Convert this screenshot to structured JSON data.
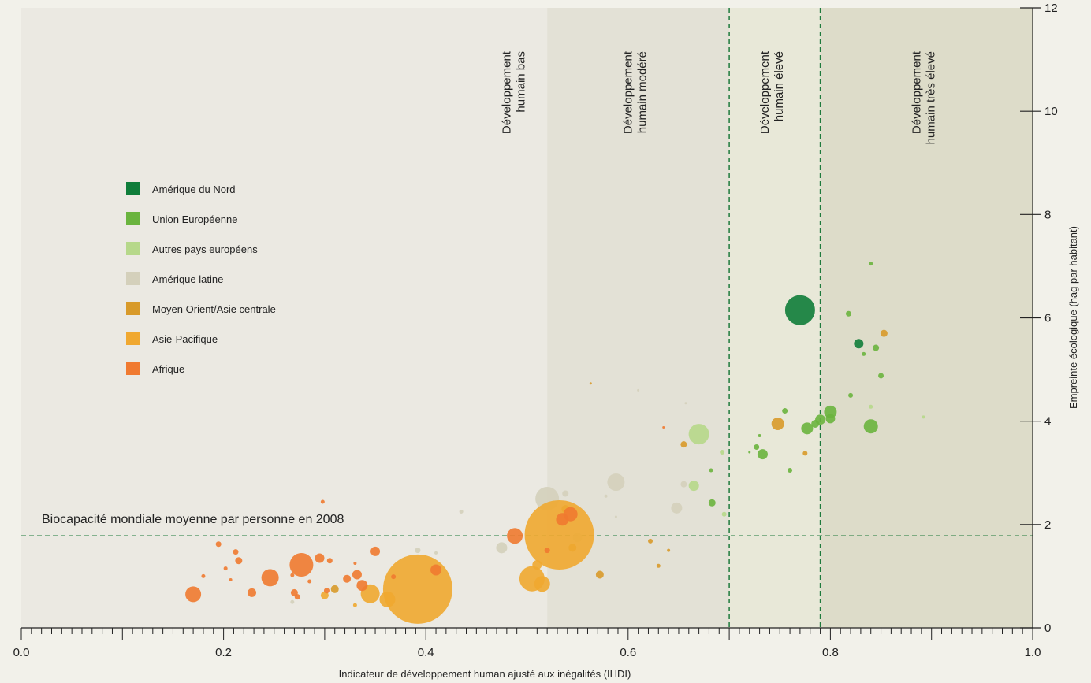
{
  "chart_data": {
    "type": "scatter",
    "xlabel": "Indicateur de développement human ajusté aux inégalités (IHDI)",
    "ylabel": "Empreinte écologique (hag par habitant)",
    "xlim": [
      0.0,
      1.0
    ],
    "ylim": [
      0,
      12
    ],
    "x_ticks": [
      "0.0",
      "0.2",
      "0.4",
      "0.6",
      "0.8",
      "1.0"
    ],
    "y_ticks": [
      "0",
      "2",
      "4",
      "6",
      "8",
      "10",
      "12"
    ],
    "grid": false,
    "legend_position": "left",
    "zones": [
      {
        "label": [
          "Développement",
          "humain bas"
        ],
        "x0": 0.0,
        "x1": 0.52,
        "color": "#ebe9e2"
      },
      {
        "label": [
          "Développement",
          "humain modéré"
        ],
        "x0": 0.52,
        "x1": 0.7,
        "color": "#e3e1d6"
      },
      {
        "label": [
          "Développement",
          "humain élevé"
        ],
        "x0": 0.7,
        "x1": 0.79,
        "color": "#e8e8d8"
      },
      {
        "label": [
          "Développement",
          "humain très élevé"
        ],
        "x0": 0.79,
        "x1": 1.0,
        "color": "#dddcc9"
      }
    ],
    "threshold_lines": {
      "x": [
        0.7,
        0.79
      ],
      "y": 1.78
    },
    "annotation": "Biocapacité mondiale moyenne par personne en 2008",
    "series": [
      {
        "name": "Amérique du Nord",
        "color": "#0f7d3a",
        "points": [
          {
            "x": 0.77,
            "y": 6.15,
            "s": 38
          },
          {
            "x": 0.828,
            "y": 5.5,
            "s": 12
          }
        ]
      },
      {
        "name": "Union Européenne",
        "color": "#6ab43e",
        "points": [
          {
            "x": 0.818,
            "y": 6.08,
            "s": 7
          },
          {
            "x": 0.84,
            "y": 7.05,
            "s": 5
          },
          {
            "x": 0.845,
            "y": 5.42,
            "s": 8
          },
          {
            "x": 0.833,
            "y": 5.3,
            "s": 5
          },
          {
            "x": 0.85,
            "y": 4.88,
            "s": 7
          },
          {
            "x": 0.82,
            "y": 4.5,
            "s": 6
          },
          {
            "x": 0.84,
            "y": 3.9,
            "s": 18
          },
          {
            "x": 0.8,
            "y": 4.18,
            "s": 16
          },
          {
            "x": 0.79,
            "y": 4.03,
            "s": 13
          },
          {
            "x": 0.785,
            "y": 3.95,
            "s": 10
          },
          {
            "x": 0.8,
            "y": 4.05,
            "s": 12
          },
          {
            "x": 0.777,
            "y": 3.86,
            "s": 15
          },
          {
            "x": 0.755,
            "y": 4.2,
            "s": 7
          },
          {
            "x": 0.733,
            "y": 3.36,
            "s": 13
          },
          {
            "x": 0.727,
            "y": 3.5,
            "s": 7
          },
          {
            "x": 0.73,
            "y": 3.72,
            "s": 4
          },
          {
            "x": 0.76,
            "y": 3.05,
            "s": 6
          },
          {
            "x": 0.682,
            "y": 3.05,
            "s": 5
          },
          {
            "x": 0.683,
            "y": 2.42,
            "s": 9
          },
          {
            "x": 0.72,
            "y": 3.4,
            "s": 3
          }
        ]
      },
      {
        "name": "Autres pays européens",
        "color": "#b6d88a",
        "points": [
          {
            "x": 0.67,
            "y": 3.75,
            "s": 26
          },
          {
            "x": 0.665,
            "y": 2.75,
            "s": 13
          },
          {
            "x": 0.695,
            "y": 2.2,
            "s": 6
          },
          {
            "x": 0.84,
            "y": 4.28,
            "s": 5
          },
          {
            "x": 0.892,
            "y": 4.08,
            "s": 4
          },
          {
            "x": 0.693,
            "y": 3.4,
            "s": 6
          }
        ]
      },
      {
        "name": "Amérique latine",
        "color": "#d4d0bb",
        "points": [
          {
            "x": 0.52,
            "y": 2.5,
            "s": 30
          },
          {
            "x": 0.588,
            "y": 2.82,
            "s": 22
          },
          {
            "x": 0.648,
            "y": 2.32,
            "s": 14
          },
          {
            "x": 0.655,
            "y": 2.78,
            "s": 8
          },
          {
            "x": 0.538,
            "y": 2.6,
            "s": 8
          },
          {
            "x": 0.475,
            "y": 1.55,
            "s": 14
          },
          {
            "x": 0.55,
            "y": 1.75,
            "s": 12
          },
          {
            "x": 0.392,
            "y": 1.5,
            "s": 7
          },
          {
            "x": 0.435,
            "y": 2.25,
            "s": 5
          },
          {
            "x": 0.41,
            "y": 1.45,
            "s": 4
          },
          {
            "x": 0.578,
            "y": 2.55,
            "s": 4
          },
          {
            "x": 0.61,
            "y": 4.6,
            "s": 3
          },
          {
            "x": 0.657,
            "y": 4.35,
            "s": 3
          },
          {
            "x": 0.268,
            "y": 0.5,
            "s": 5
          },
          {
            "x": 0.588,
            "y": 2.15,
            "s": 3
          }
        ]
      },
      {
        "name": "Moyen Orient/Asie centrale",
        "color": "#d89a2a",
        "points": [
          {
            "x": 0.748,
            "y": 3.95,
            "s": 16
          },
          {
            "x": 0.853,
            "y": 5.7,
            "s": 9
          },
          {
            "x": 0.655,
            "y": 3.55,
            "s": 8
          },
          {
            "x": 0.775,
            "y": 3.38,
            "s": 6
          },
          {
            "x": 0.622,
            "y": 1.68,
            "s": 6
          },
          {
            "x": 0.63,
            "y": 1.2,
            "s": 5
          },
          {
            "x": 0.64,
            "y": 1.5,
            "s": 4
          },
          {
            "x": 0.538,
            "y": 2.3,
            "s": 10
          },
          {
            "x": 0.545,
            "y": 1.55,
            "s": 10
          },
          {
            "x": 0.572,
            "y": 1.03,
            "s": 10
          },
          {
            "x": 0.563,
            "y": 4.73,
            "s": 3
          },
          {
            "x": 0.31,
            "y": 0.75,
            "s": 10
          }
        ]
      },
      {
        "name": "Asie-Pacifique",
        "color": "#f0a830",
        "points": [
          {
            "x": 0.392,
            "y": 0.75,
            "s": 88
          },
          {
            "x": 0.532,
            "y": 1.8,
            "s": 88
          },
          {
            "x": 0.505,
            "y": 0.95,
            "s": 32
          },
          {
            "x": 0.515,
            "y": 0.85,
            "s": 20
          },
          {
            "x": 0.345,
            "y": 0.66,
            "s": 24
          },
          {
            "x": 0.362,
            "y": 0.55,
            "s": 20
          },
          {
            "x": 0.3,
            "y": 0.63,
            "s": 10
          },
          {
            "x": 0.33,
            "y": 0.44,
            "s": 5
          },
          {
            "x": 0.51,
            "y": 1.22,
            "s": 12
          }
        ]
      },
      {
        "name": "Afrique",
        "color": "#f07a30",
        "points": [
          {
            "x": 0.17,
            "y": 0.65,
            "s": 20
          },
          {
            "x": 0.246,
            "y": 0.97,
            "s": 22
          },
          {
            "x": 0.277,
            "y": 1.22,
            "s": 30
          },
          {
            "x": 0.295,
            "y": 1.35,
            "s": 12
          },
          {
            "x": 0.195,
            "y": 1.62,
            "s": 7
          },
          {
            "x": 0.212,
            "y": 1.47,
            "s": 7
          },
          {
            "x": 0.215,
            "y": 1.3,
            "s": 9
          },
          {
            "x": 0.228,
            "y": 0.68,
            "s": 11
          },
          {
            "x": 0.27,
            "y": 0.68,
            "s": 9
          },
          {
            "x": 0.273,
            "y": 0.6,
            "s": 7
          },
          {
            "x": 0.305,
            "y": 1.3,
            "s": 7
          },
          {
            "x": 0.302,
            "y": 0.72,
            "s": 7
          },
          {
            "x": 0.322,
            "y": 0.95,
            "s": 10
          },
          {
            "x": 0.332,
            "y": 1.03,
            "s": 12
          },
          {
            "x": 0.337,
            "y": 0.82,
            "s": 14
          },
          {
            "x": 0.368,
            "y": 0.99,
            "s": 6
          },
          {
            "x": 0.35,
            "y": 1.48,
            "s": 12
          },
          {
            "x": 0.298,
            "y": 2.44,
            "s": 5
          },
          {
            "x": 0.41,
            "y": 1.12,
            "s": 14
          },
          {
            "x": 0.488,
            "y": 1.78,
            "s": 20
          },
          {
            "x": 0.52,
            "y": 1.5,
            "s": 7
          },
          {
            "x": 0.535,
            "y": 2.1,
            "s": 16
          },
          {
            "x": 0.543,
            "y": 2.2,
            "s": 18
          },
          {
            "x": 0.18,
            "y": 1.0,
            "s": 5
          },
          {
            "x": 0.202,
            "y": 1.15,
            "s": 5
          },
          {
            "x": 0.285,
            "y": 0.9,
            "s": 5
          },
          {
            "x": 0.268,
            "y": 1.02,
            "s": 5
          },
          {
            "x": 0.33,
            "y": 1.25,
            "s": 4
          },
          {
            "x": 0.207,
            "y": 0.93,
            "s": 4
          },
          {
            "x": 0.635,
            "y": 3.88,
            "s": 3
          }
        ]
      }
    ]
  }
}
